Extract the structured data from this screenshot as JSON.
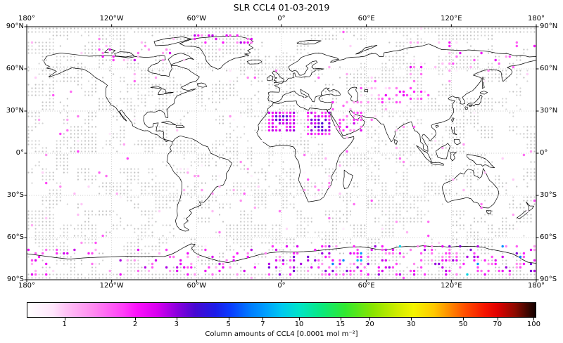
{
  "title": "SLR CCL4 01-03-2019",
  "map": {
    "projection": "equirectangular",
    "lon_ticks": [
      {
        "label": "180°",
        "lon": -180
      },
      {
        "label": "120°W",
        "lon": -120
      },
      {
        "label": "60°W",
        "lon": -60
      },
      {
        "label": "0°",
        "lon": 0
      },
      {
        "label": "60°E",
        "lon": 60
      },
      {
        "label": "120°E",
        "lon": 120
      },
      {
        "label": "180°",
        "lon": 180
      }
    ],
    "lat_ticks": [
      {
        "label": "90°N",
        "lat": 90
      },
      {
        "label": "60°N",
        "lat": 60
      },
      {
        "label": "30°N",
        "lat": 30
      },
      {
        "label": "0°",
        "lat": 0
      },
      {
        "label": "30°S",
        "lat": -30
      },
      {
        "label": "60°S",
        "lat": -60
      },
      {
        "label": "90°S",
        "lat": -90
      }
    ],
    "gridline_lons": [
      -120,
      -60,
      0,
      60,
      120
    ],
    "gridline_lats": [
      60,
      30,
      0,
      -30,
      -60
    ],
    "grid_color": "#b0b0b0",
    "coast_color": "#000000"
  },
  "colorbar": {
    "label": "Column amounts of CCL4 [0.0001 mol m⁻²]",
    "scale": "log",
    "vmin": 0.69,
    "vmax": 102.5,
    "ticks": [
      1,
      2,
      3,
      5,
      7,
      10,
      15,
      20,
      30,
      50,
      70,
      100
    ],
    "gradient_stops": [
      [
        0.0,
        "#ffffff"
      ],
      [
        0.05,
        "#ffe6fc"
      ],
      [
        0.075,
        "#ffc4f6"
      ],
      [
        0.13,
        "#ff8af0"
      ],
      [
        0.19,
        "#ff3df8"
      ],
      [
        0.215,
        "#fb12fb"
      ],
      [
        0.255,
        "#d800f0"
      ],
      [
        0.295,
        "#8a00dd"
      ],
      [
        0.33,
        "#4708d2"
      ],
      [
        0.37,
        "#1d1ce8"
      ],
      [
        0.4,
        "#0a3cff"
      ],
      [
        0.44,
        "#007eff"
      ],
      [
        0.465,
        "#009aff"
      ],
      [
        0.5,
        "#00c8f0"
      ],
      [
        0.535,
        "#00e4c8"
      ],
      [
        0.58,
        "#0ae87c"
      ],
      [
        0.625,
        "#30e830"
      ],
      [
        0.68,
        "#8ae400"
      ],
      [
        0.73,
        "#d2ec00"
      ],
      [
        0.76,
        "#f4f400"
      ],
      [
        0.8,
        "#ffc800"
      ],
      [
        0.83,
        "#ff8c00"
      ],
      [
        0.86,
        "#ff5000"
      ],
      [
        0.9,
        "#f51400"
      ],
      [
        0.925,
        "#e00000"
      ],
      [
        0.96,
        "#8c0a00"
      ],
      [
        0.99,
        "#2d0500"
      ],
      [
        1.0,
        "#140000"
      ]
    ]
  },
  "chart_data": {
    "type": "scatter",
    "subtype": "gridded-geo-scatter",
    "title": "SLR CCL4 01-03-2019",
    "value_label": "Column amounts of CCL4",
    "units": "0.0001 mol m⁻²",
    "grid_resolution_deg": 2.5,
    "lon_range": [
      -180,
      180
    ],
    "lat_range": [
      -90,
      90
    ],
    "background_dot_color_light": "#d4d4d4",
    "background_dot_color_dark": "#c2c2c2",
    "background_dot_coverage": 0.38,
    "hotspots": [
      {
        "name": "north-africa-west",
        "lon": [
          -11,
          9
        ],
        "lat": [
          16,
          31
        ],
        "density": 0.88,
        "value_range": [
          1.6,
          3.0
        ],
        "core": {
          "lon": [
            -6,
            5
          ],
          "lat": [
            19,
            28
          ],
          "range": [
            2.4,
            3.8
          ]
        },
        "bright": {
          "chance": 0.015,
          "range": [
            4.5,
            7
          ]
        }
      },
      {
        "name": "north-africa-east",
        "lon": [
          17,
          36
        ],
        "lat": [
          13.5,
          29
        ],
        "density": 0.82,
        "value_range": [
          1.6,
          3.0
        ],
        "core": {
          "lon": [
            21,
            33
          ],
          "lat": [
            16,
            26
          ],
          "range": [
            2.4,
            3.8
          ]
        },
        "bright": {
          "chance": 0.015,
          "range": [
            4.5,
            7
          ]
        }
      },
      {
        "name": "arabian-peninsula",
        "lon": [
          39,
          57
        ],
        "lat": [
          14,
          29
        ],
        "density": 0.5,
        "value_range": [
          1.2,
          2.6
        ]
      },
      {
        "name": "middle-east-north",
        "lon": [
          36,
          52
        ],
        "lat": [
          29,
          38
        ],
        "density": 0.15,
        "value_range": [
          1.0,
          2.0
        ]
      },
      {
        "name": "central-asia",
        "lon": [
          55,
          106
        ],
        "lat": [
          34,
          48
        ],
        "density": 0.3,
        "value_range": [
          0.9,
          2.1
        ],
        "core": {
          "lon": [
            73,
            96
          ],
          "lat": [
            37,
            45
          ],
          "range": [
            1.2,
            2.3
          ]
        }
      },
      {
        "name": "greenland-north",
        "lon": [
          -62,
          -20
        ],
        "lat": [
          78,
          84
        ],
        "density": 0.32,
        "value_range": [
          1.3,
          3.0
        ]
      },
      {
        "name": "arctic-canada",
        "lon": [
          -130,
          -62
        ],
        "lat": [
          66,
          83
        ],
        "density": 0.1,
        "value_range": [
          1.0,
          2.6
        ]
      },
      {
        "name": "arctic-siberia",
        "lon": [
          90,
          180
        ],
        "lat": [
          55,
          80
        ],
        "density": 0.08,
        "value_range": [
          0.9,
          2.4
        ]
      },
      {
        "name": "antarctica-east",
        "lon": [
          -10,
          180
        ],
        "lat": [
          -88,
          -66
        ],
        "density": 0.26,
        "value_range": [
          1.2,
          3.2
        ],
        "bright": {
          "chance": 0.05,
          "range": [
            5,
            12
          ]
        }
      },
      {
        "name": "antarctica-west",
        "lon": [
          -180,
          -10
        ],
        "lat": [
          -88,
          -67
        ],
        "density": 0.13,
        "value_range": [
          1.1,
          2.8
        ],
        "bright": {
          "chance": 0.03,
          "range": [
            5,
            9
          ]
        }
      },
      {
        "name": "south-america",
        "lon": [
          -75,
          -38
        ],
        "lat": [
          -35,
          -5
        ],
        "density": 0.035,
        "value_range": [
          0.7,
          1.3
        ]
      },
      {
        "name": "southern-africa",
        "lon": [
          12,
          36
        ],
        "lat": [
          -33,
          -15
        ],
        "density": 0.05,
        "value_range": [
          0.8,
          1.6
        ]
      },
      {
        "name": "australia",
        "lon": [
          114,
          150
        ],
        "lat": [
          -33,
          -18
        ],
        "density": 0.04,
        "value_range": [
          0.7,
          1.2
        ]
      },
      {
        "name": "global-sparse",
        "lon": [
          -180,
          180
        ],
        "lat": [
          -90,
          90
        ],
        "density": 0.015,
        "value_range": [
          0.7,
          1.8
        ]
      }
    ]
  }
}
